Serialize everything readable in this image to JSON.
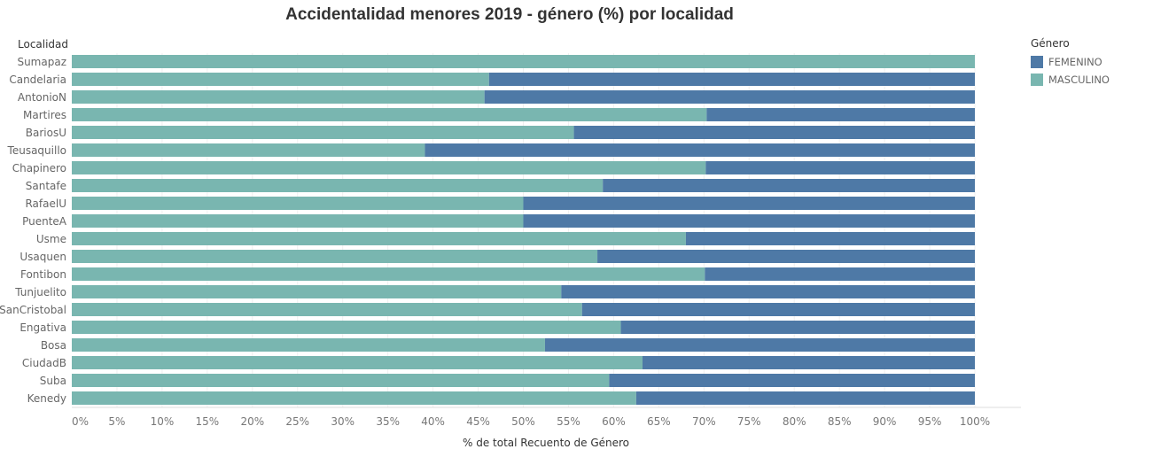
{
  "title": "Accidentalidad menores 2019 - género (%) por localidad",
  "colors": {
    "masculino": "#79b6b0",
    "femenino": "#4e79a6"
  },
  "chart_data": {
    "type": "bar",
    "orientation": "horizontal",
    "stacked": true,
    "title": "Accidentalidad menores 2019 - género (%) por localidad",
    "ylabel": "Localidad",
    "xlabel": "% de total Recuento de Género",
    "xlim": [
      0,
      100
    ],
    "x_ticks": [
      "0%",
      "5%",
      "10%",
      "15%",
      "20%",
      "25%",
      "30%",
      "35%",
      "40%",
      "45%",
      "50%",
      "55%",
      "60%",
      "65%",
      "70%",
      "75%",
      "80%",
      "85%",
      "90%",
      "95%",
      "100%"
    ],
    "legend_title": "Género",
    "legend_position": "right",
    "categories": [
      "Sumapaz",
      "Candelaria",
      "AntonioN",
      "Martires",
      "BariosU",
      "Teusaquillo",
      "Chapinero",
      "Santafe",
      "RafaelU",
      "PuenteA",
      "Usme",
      "Usaquen",
      "Fontibon",
      "Tunjuelito",
      "SanCristobal",
      "Engativa",
      "Bosa",
      "CiudadB",
      "Suba",
      "Kenedy"
    ],
    "series": [
      {
        "name": "MASCULINO",
        "values": [
          100,
          46.2,
          45.7,
          70.3,
          55.6,
          39.1,
          70.2,
          58.8,
          50.0,
          50.0,
          68.0,
          58.2,
          70.1,
          54.2,
          56.5,
          60.8,
          52.4,
          63.2,
          59.5,
          62.5
        ]
      },
      {
        "name": "FEMENINO",
        "values": [
          0,
          53.8,
          54.3,
          29.7,
          44.4,
          60.9,
          29.8,
          41.2,
          50.0,
          50.0,
          32.0,
          41.8,
          29.9,
          45.8,
          43.5,
          39.2,
          47.6,
          36.8,
          40.5,
          37.5
        ]
      }
    ]
  }
}
